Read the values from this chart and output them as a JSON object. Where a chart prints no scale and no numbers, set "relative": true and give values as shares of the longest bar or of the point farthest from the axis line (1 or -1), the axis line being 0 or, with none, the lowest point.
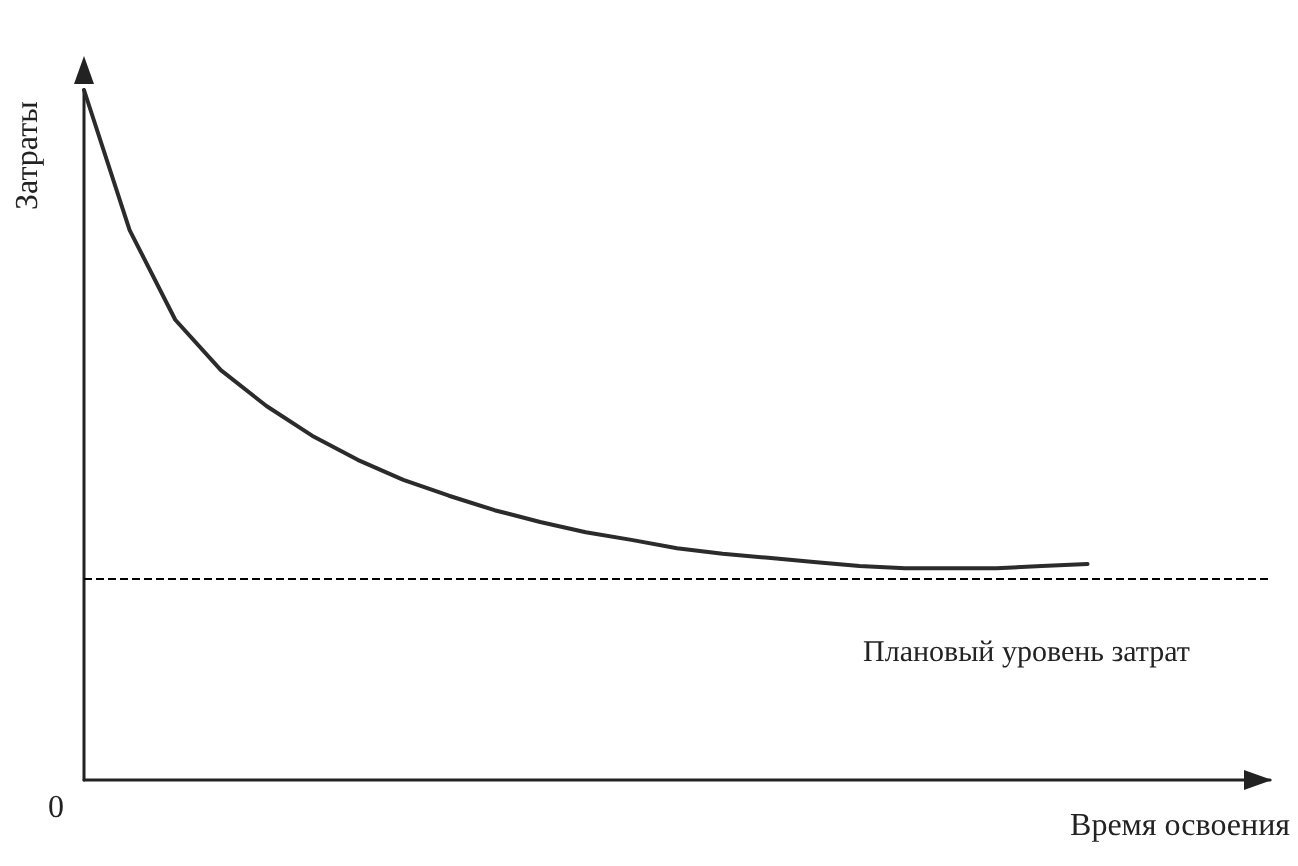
{
  "chart_data": {
    "type": "line",
    "relative": true,
    "xlabel": "Время освоения",
    "ylabel": "Затраты",
    "annotations": [
      "0"
    ],
    "categories": [
      null,
      null,
      null,
      null,
      null,
      null,
      null,
      null,
      null,
      null,
      null,
      null,
      null,
      null,
      null,
      null,
      null,
      null,
      null,
      null,
      null,
      null,
      null,
      null,
      null,
      null,
      null
    ],
    "series": [
      {
        "color": "#2b2b2b",
        "values": [
          1,
          0.797,
          0.667,
          0.594,
          0.542,
          0.499,
          0.464,
          0.435,
          0.412,
          0.391,
          0.374,
          0.359,
          0.348,
          0.336,
          0.328,
          0.322,
          0.316,
          0.31,
          0.307,
          0.307,
          0.307,
          0.31,
          0.313,
          null,
          null,
          null,
          null
        ]
      }
    ],
    "ref_lines": [
      {
        "axis": "y",
        "value": 0.293,
        "label": "Плановый уровень затрат",
        "line_style": "dashed",
        "color": "#000000"
      }
    ],
    "grid": false,
    "marker": "none",
    "line_style": "solid"
  }
}
